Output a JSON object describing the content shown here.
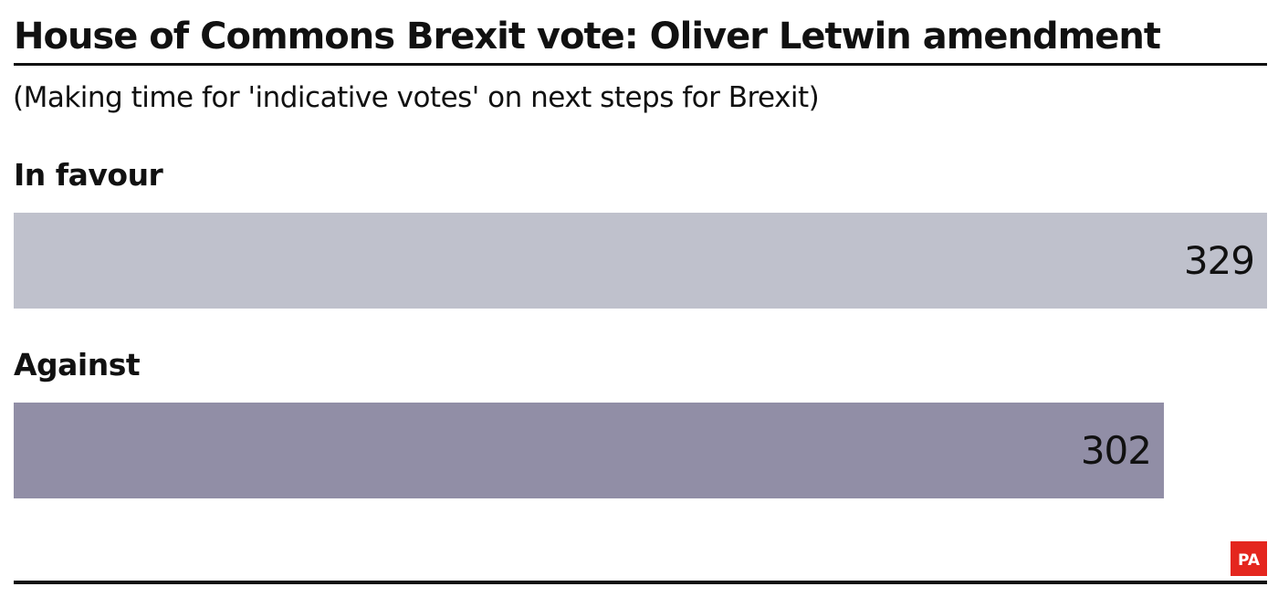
{
  "chart_data": {
    "type": "bar",
    "orientation": "horizontal",
    "title": "House of Commons Brexit vote: Oliver Letwin amendment",
    "subtitle": "(Making time for 'indicative votes' on next steps for Brexit)",
    "categories": [
      "In favour",
      "Against"
    ],
    "values": [
      329,
      302
    ],
    "value_labels": [
      "329",
      "302"
    ],
    "xlim": [
      0,
      329
    ],
    "grid": false,
    "colors": [
      "#bfc1cc",
      "#918ea6"
    ]
  },
  "logo": {
    "text": "PA",
    "color": "#e4261e"
  }
}
